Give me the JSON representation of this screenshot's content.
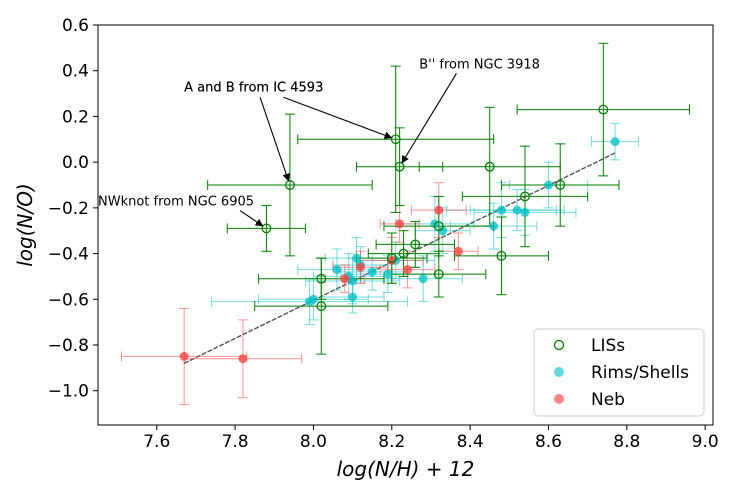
{
  "chart_data": {
    "type": "scatter",
    "xlabel": "log(N/H) + 12",
    "ylabel": "log(N/O)",
    "xlim": [
      7.45,
      9.02
    ],
    "ylim": [
      -1.15,
      0.6
    ],
    "xticks": [
      7.6,
      7.8,
      8.0,
      8.2,
      8.4,
      8.6,
      8.8,
      9.0
    ],
    "yticks": [
      -1.0,
      -0.8,
      -0.6,
      -0.4,
      -0.2,
      0.0,
      0.2,
      0.4,
      0.6
    ],
    "xtick_labels": [
      "7.6",
      "7.8",
      "8.0",
      "8.2",
      "8.4",
      "8.6",
      "8.8",
      "9.0"
    ],
    "ytick_labels": [
      "−1.0",
      "−0.8",
      "−0.6",
      "−0.4",
      "−0.2",
      "0.0",
      "0.2",
      "0.4",
      "0.6"
    ],
    "legend_position": "lower-right",
    "series": [
      {
        "name": "Rims/Shells",
        "color": "#00BFC4",
        "points": [
          {
            "x": 8.1,
            "y": -0.52,
            "xerr": 0.12,
            "yerr": 0.1
          },
          {
            "x": 8.06,
            "y": -0.47,
            "xerr": 0.1,
            "yerr": 0.09
          },
          {
            "x": 8.09,
            "y": -0.5,
            "xerr": 0.09,
            "yerr": 0.1
          },
          {
            "x": 8.0,
            "y": -0.6,
            "xerr": 0.14,
            "yerr": 0.09
          },
          {
            "x": 7.99,
            "y": -0.61,
            "xerr": 0.25,
            "yerr": 0.1
          },
          {
            "x": 8.1,
            "y": -0.59,
            "xerr": 0.08,
            "yerr": 0.07
          },
          {
            "x": 8.11,
            "y": -0.42,
            "xerr": 0.08,
            "yerr": 0.09
          },
          {
            "x": 8.12,
            "y": -0.45,
            "xerr": 0.07,
            "yerr": 0.08
          },
          {
            "x": 8.15,
            "y": -0.48,
            "xerr": 0.09,
            "yerr": 0.08
          },
          {
            "x": 8.19,
            "y": -0.49,
            "xerr": 0.12,
            "yerr": 0.08
          },
          {
            "x": 8.21,
            "y": -0.43,
            "xerr": 0.1,
            "yerr": 0.08
          },
          {
            "x": 8.28,
            "y": -0.51,
            "xerr": 0.1,
            "yerr": 0.1
          },
          {
            "x": 8.31,
            "y": -0.27,
            "xerr": 0.1,
            "yerr": 0.12
          },
          {
            "x": 8.33,
            "y": -0.3,
            "xerr": 0.07,
            "yerr": 0.1
          },
          {
            "x": 8.46,
            "y": -0.28,
            "xerr": 0.11,
            "yerr": 0.1
          },
          {
            "x": 8.48,
            "y": -0.21,
            "xerr": 0.14,
            "yerr": 0.12
          },
          {
            "x": 8.52,
            "y": -0.21,
            "xerr": 0.12,
            "yerr": 0.09
          },
          {
            "x": 8.54,
            "y": -0.22,
            "xerr": 0.13,
            "yerr": 0.1
          },
          {
            "x": 8.6,
            "y": -0.1,
            "xerr": 0.1,
            "yerr": 0.1
          },
          {
            "x": 8.77,
            "y": 0.09,
            "xerr": 0.06,
            "yerr": 0.08
          }
        ]
      },
      {
        "name": "Neb",
        "color": "#FF3B3B",
        "points": [
          {
            "x": 7.67,
            "y": -0.85,
            "xerr": 0.16,
            "yerr": 0.21
          },
          {
            "x": 7.82,
            "y": -0.86,
            "xerr": 0.15,
            "yerr": 0.17
          },
          {
            "x": 8.08,
            "y": -0.51,
            "xerr": 0.05,
            "yerr": 0.06
          },
          {
            "x": 8.12,
            "y": -0.46,
            "xerr": 0.07,
            "yerr": 0.07
          },
          {
            "x": 8.2,
            "y": -0.43,
            "xerr": 0.08,
            "yerr": 0.1
          },
          {
            "x": 8.22,
            "y": -0.27,
            "xerr": 0.05,
            "yerr": 0.08
          },
          {
            "x": 8.24,
            "y": -0.47,
            "xerr": 0.07,
            "yerr": 0.08
          },
          {
            "x": 8.32,
            "y": -0.21,
            "xerr": 0.07,
            "yerr": 0.12
          },
          {
            "x": 8.37,
            "y": -0.39,
            "xerr": 0.05,
            "yerr": 0.08
          }
        ]
      },
      {
        "name": "LISs",
        "color": "#007F00",
        "hollow": true,
        "points": [
          {
            "x": 7.88,
            "y": -0.29,
            "xerr": 0.1,
            "yerr": 0.1
          },
          {
            "x": 7.94,
            "y": -0.1,
            "xerr": 0.21,
            "yerr": 0.31
          },
          {
            "x": 8.02,
            "y": -0.51,
            "xerr": 0.16,
            "yerr": 0.09
          },
          {
            "x": 8.02,
            "y": -0.63,
            "xerr": 0.17,
            "yerr": 0.21
          },
          {
            "x": 8.21,
            "y": 0.1,
            "xerr": 0.25,
            "yerr": 0.32
          },
          {
            "x": 8.22,
            "y": -0.02,
            "xerr": 0.11,
            "yerr": 0.17
          },
          {
            "x": 8.2,
            "y": -0.42,
            "xerr": 0.09,
            "yerr": 0.11
          },
          {
            "x": 8.23,
            "y": -0.4,
            "xerr": 0.09,
            "yerr": 0.1
          },
          {
            "x": 8.26,
            "y": -0.36,
            "xerr": 0.1,
            "yerr": 0.1
          },
          {
            "x": 8.32,
            "y": -0.28,
            "xerr": 0.14,
            "yerr": 0.13
          },
          {
            "x": 8.32,
            "y": -0.49,
            "xerr": 0.12,
            "yerr": 0.1
          },
          {
            "x": 8.45,
            "y": -0.02,
            "xerr": 0.18,
            "yerr": 0.26
          },
          {
            "x": 8.48,
            "y": -0.41,
            "xerr": 0.12,
            "yerr": 0.17
          },
          {
            "x": 8.54,
            "y": -0.15,
            "xerr": 0.16,
            "yerr": 0.22
          },
          {
            "x": 8.63,
            "y": -0.1,
            "xerr": 0.15,
            "yerr": 0.18
          },
          {
            "x": 8.74,
            "y": 0.23,
            "xerr": 0.22,
            "yerr": 0.29
          }
        ]
      }
    ],
    "fit_line": {
      "x": [
        7.67,
        8.77
      ],
      "y": [
        -0.88,
        0.04
      ],
      "color": "#555555"
    },
    "annotations": [
      {
        "text": "NWknot from NGC 6905",
        "tx": 7.45,
        "ty": -0.19,
        "px": 7.88,
        "py": -0.29
      },
      {
        "text": "A and B from IC 4593",
        "tx": 7.67,
        "ty": 0.31,
        "px": 7.94,
        "py": -0.1
      },
      {
        "text": "A and B from IC 4593",
        "tx": 7.67,
        "ty": 0.31,
        "px": 8.21,
        "py": 0.1
      },
      {
        "text": "B'' from NGC 3918",
        "tx": 8.27,
        "ty": 0.41,
        "px": 8.22,
        "py": -0.02
      }
    ],
    "legend": [
      {
        "label": "LISs",
        "color": "#007F00",
        "hollow": true
      },
      {
        "label": "Rims/Shells",
        "color": "#00BFC4",
        "hollow": false
      },
      {
        "label": "Neb",
        "color": "#FF3B3B",
        "hollow": false
      }
    ]
  }
}
